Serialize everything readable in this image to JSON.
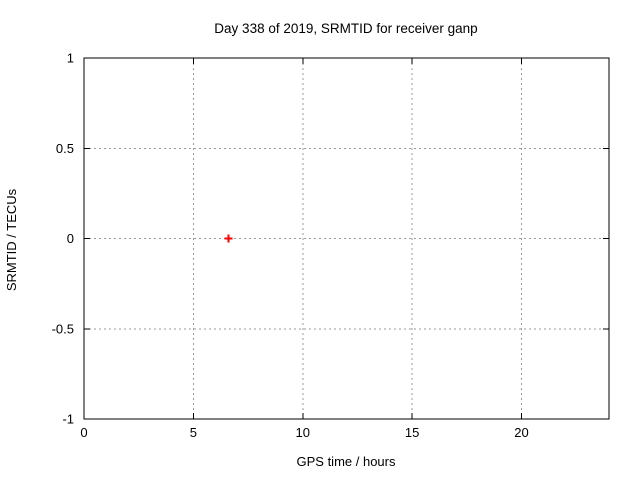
{
  "window": {
    "background": "#ffffff"
  },
  "chart_data": {
    "type": "scatter",
    "title": "Day 338 of 2019, SRMTID for receiver ganp",
    "xlabel": "GPS time / hours",
    "ylabel": "SRMTID / TECUs",
    "xlim": [
      0,
      24
    ],
    "ylim": [
      -1,
      1
    ],
    "x_ticks": [
      0,
      5,
      10,
      15,
      20
    ],
    "x_tick_labels": [
      "0",
      "5",
      "10",
      "15",
      "20"
    ],
    "y_ticks": [
      1,
      0.5,
      0,
      -0.5,
      -1
    ],
    "y_tick_labels": [
      "1",
      "0.5",
      "0",
      "-0.5",
      "-1"
    ],
    "grid": "dashed",
    "grid_axes": "both",
    "legend_position": "none",
    "colors": {
      "background": "#ffffff",
      "axis_border": "#000000",
      "grid": "#9a9a9a",
      "text": "#000000",
      "marker": "#ff0000"
    },
    "series": [
      {
        "name": "SRMTID",
        "marker": "plus",
        "color": "#ff0000",
        "points": [
          [
            6.6,
            0.0
          ]
        ]
      }
    ]
  }
}
